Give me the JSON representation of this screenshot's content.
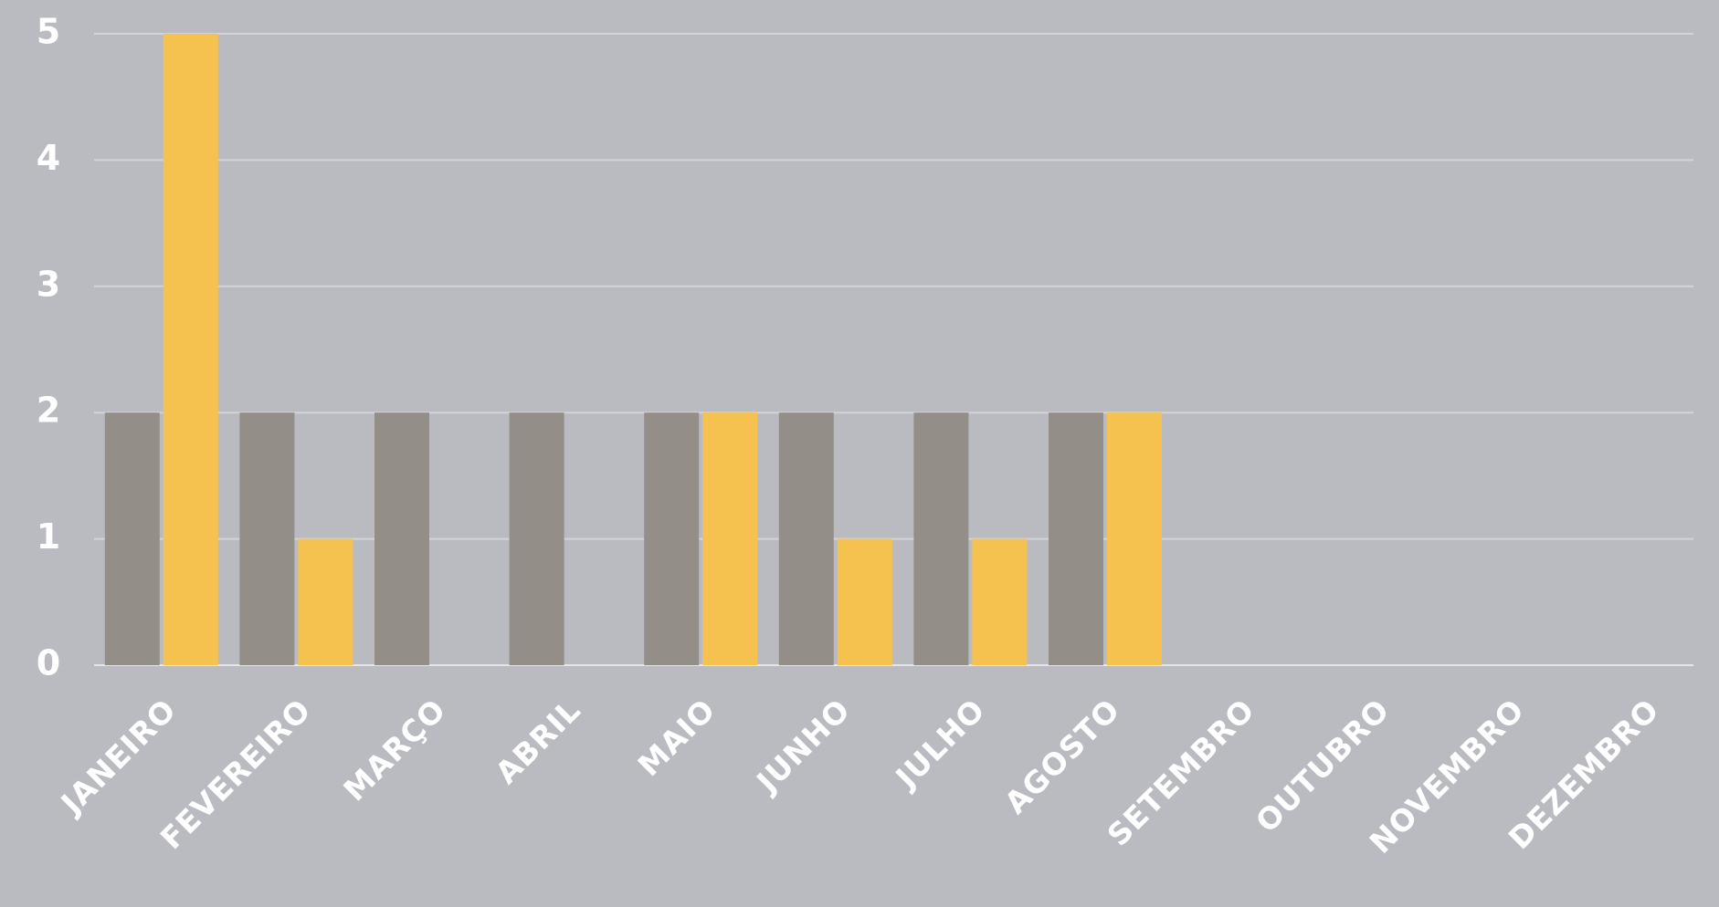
{
  "chart_data": {
    "type": "bar",
    "categories": [
      "JANEIRO",
      "FEVEREIRO",
      "MARÇO",
      "ABRIL",
      "MAIO",
      "JUNHO",
      "JULHO",
      "AGOSTO",
      "SETEMBRO",
      "OUTUBRO",
      "NOVEMBRO",
      "DEZEMBRO"
    ],
    "series": [
      {
        "color": "#938f88",
        "values": [
          2,
          2,
          2,
          2,
          2,
          2,
          2,
          2,
          null,
          null,
          null,
          null
        ]
      },
      {
        "color": "#f5c24f",
        "values": [
          5,
          1,
          0,
          0,
          2,
          1,
          1,
          2,
          null,
          null,
          null,
          null
        ]
      }
    ],
    "ylim": [
      0,
      5
    ],
    "yticks": [
      0,
      1,
      2,
      3,
      4,
      5
    ],
    "grid": true
  }
}
